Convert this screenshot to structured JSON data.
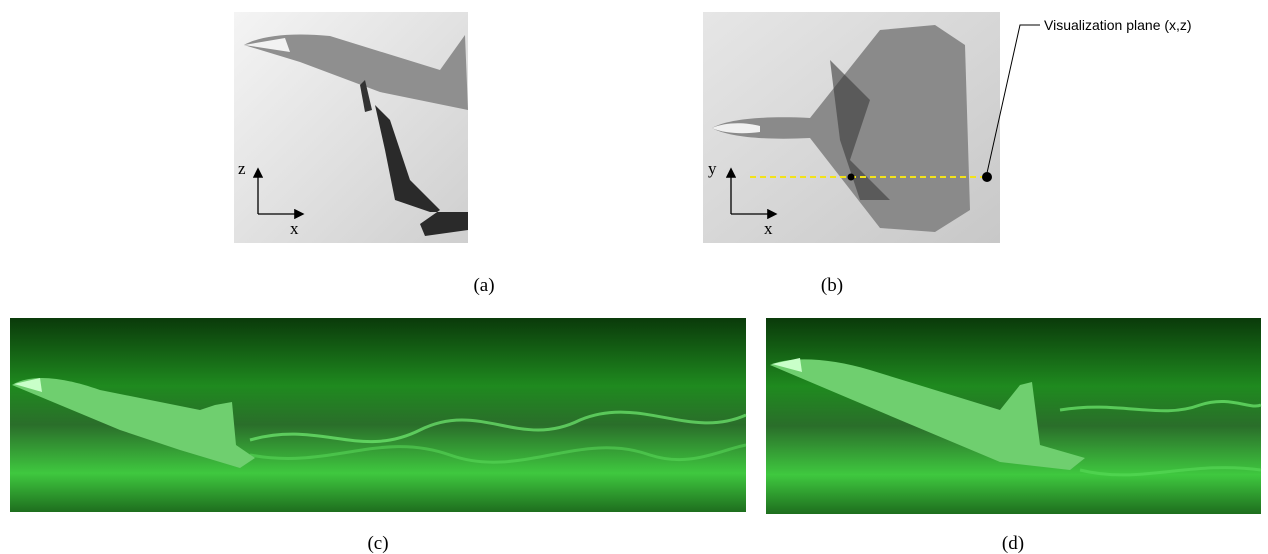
{
  "annotation": "Visualization plane (x,z)",
  "panels": [
    {
      "caption": "(a)",
      "axes": {
        "vertical": "z",
        "horizontal": "x"
      }
    },
    {
      "caption": "(b)",
      "axes": {
        "vertical": "y",
        "horizontal": "x"
      }
    },
    {
      "caption": "(c)"
    },
    {
      "caption": "(d)"
    }
  ]
}
